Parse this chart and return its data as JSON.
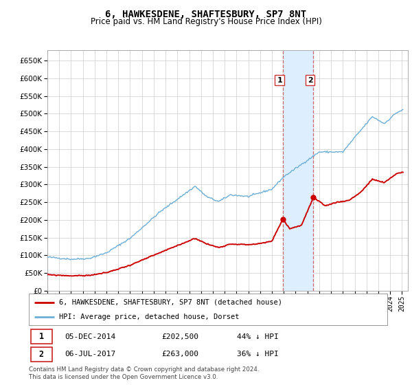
{
  "title": "6, HAWKESDENE, SHAFTESBURY, SP7 8NT",
  "subtitle": "Price paid vs. HM Land Registry's House Price Index (HPI)",
  "ylabel_ticks": [
    0,
    50000,
    100000,
    150000,
    200000,
    250000,
    300000,
    350000,
    400000,
    450000,
    500000,
    550000,
    600000,
    650000
  ],
  "ylim": [
    0,
    680000
  ],
  "xlim_start": 1995.0,
  "xlim_end": 2025.5,
  "sale1_date": 2014.917,
  "sale1_price": 202500,
  "sale2_date": 2017.5,
  "sale2_price": 263000,
  "hpi_color": "#6baed6",
  "price_color": "#cc0000",
  "shade_color": "#ddeeff",
  "dash_color": "#cc6666",
  "grid_color": "#cccccc",
  "background_color": "#ffffff",
  "legend_line1": "6, HAWKESDENE, SHAFTESBURY, SP7 8NT (detached house)",
  "legend_line2": "HPI: Average price, detached house, Dorset",
  "ann1_date": "05-DEC-2014",
  "ann1_price": "£202,500",
  "ann1_note": "44% ↓ HPI",
  "ann2_date": "06-JUL-2017",
  "ann2_price": "£263,000",
  "ann2_note": "36% ↓ HPI",
  "footer": "Contains HM Land Registry data © Crown copyright and database right 2024.\nThis data is licensed under the Open Government Licence v3.0.",
  "hpi_anchors_x": [
    1995.0,
    1997.0,
    1998.5,
    2000.0,
    2002.0,
    2004.5,
    2007.5,
    2008.5,
    2009.5,
    2010.5,
    2012.0,
    2014.0,
    2015.0,
    2016.5,
    2018.0,
    2020.0,
    2021.0,
    2022.5,
    2023.5,
    2024.5,
    2025.0
  ],
  "hpi_anchors_y": [
    95000,
    89000,
    91000,
    107000,
    148000,
    222000,
    295000,
    265000,
    252000,
    271000,
    266000,
    287000,
    322000,
    357000,
    392000,
    392000,
    433000,
    492000,
    472000,
    502000,
    510000
  ],
  "price_anchors_x": [
    1995.0,
    1997.0,
    1998.5,
    2000.0,
    2002.0,
    2004.5,
    2007.5,
    2008.5,
    2009.5,
    2010.5,
    2012.0,
    2013.0,
    2014.0,
    2014.917,
    2015.5,
    2016.5,
    2017.5,
    2018.5,
    2019.5,
    2020.5,
    2021.5,
    2022.5,
    2023.5,
    2024.5,
    2025.0
  ],
  "price_anchors_y": [
    45000,
    42000,
    43000,
    51000,
    72000,
    107000,
    148000,
    132000,
    122000,
    132000,
    130000,
    133000,
    140000,
    202500,
    175000,
    185000,
    263000,
    240000,
    250000,
    255000,
    278000,
    315000,
    305000,
    330000,
    335000
  ]
}
